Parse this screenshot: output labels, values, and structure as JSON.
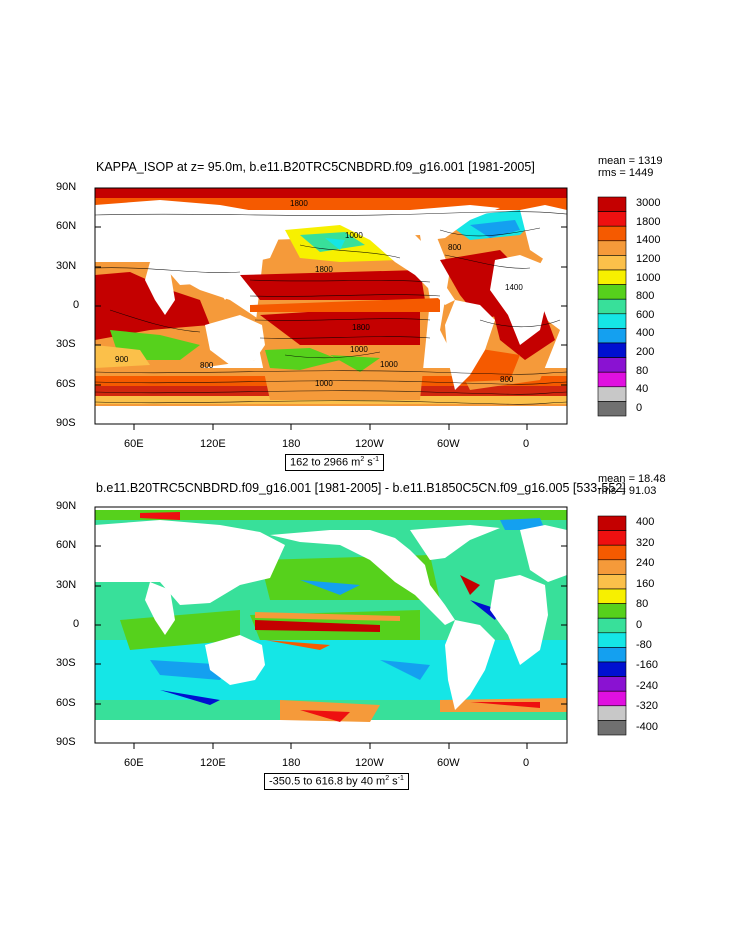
{
  "panels": [
    {
      "title": "KAPPA_ISOP at z=  95.0m, b.e11.B20TRC5CNBDRD.f09_g16.001 [1981-2005]",
      "mean": "mean = 1319",
      "rms": "rms = 1449",
      "range_text": "162 to 2966 m",
      "range_sup1": "2",
      "range_mid": " s",
      "range_sup2": "-1",
      "colorbar_labels": [
        "3000",
        "1800",
        "1400",
        "1200",
        "1000",
        "800",
        "600",
        "400",
        "200",
        "80",
        "40",
        "0"
      ],
      "colorbar_colors": [
        "#c40000",
        "#ee1010",
        "#f55a00",
        "#f59a3a",
        "#fbc04a",
        "#f7f000",
        "#56d11c",
        "#38e09a",
        "#15e6e6",
        "#14a0f0",
        "#0010d0",
        "#8a12d2",
        "#e010e0",
        "#c8c8c8",
        "#707070"
      ],
      "contour_labels": [
        "1800",
        "1000",
        "1800",
        "1800",
        "1000",
        "800",
        "900",
        "1000",
        "800",
        "1000",
        "1400",
        "800"
      ]
    },
    {
      "title": "b.e11.B20TRC5CNBDRD.f09_g16.001 [1981-2005] - b.e11.B1850C5CN.f09_g16.005 [533-552]",
      "mean": "mean = 18.48",
      "rms": "rms = 91.03",
      "range_text": "-350.5 to 616.8 by 40 m",
      "range_sup1": "2",
      "range_mid": " s",
      "range_sup2": "-1",
      "colorbar_labels": [
        "400",
        "320",
        "240",
        "160",
        "80",
        "0",
        "-80",
        "-160",
        "-240",
        "-320",
        "-400"
      ],
      "colorbar_colors": [
        "#c40000",
        "#ee1010",
        "#f55a00",
        "#f59a3a",
        "#fbc04a",
        "#f7f000",
        "#56d11c",
        "#38e09a",
        "#15e6e6",
        "#14a0f0",
        "#0010d0",
        "#8a12d2",
        "#e010e0",
        "#c8c8c8",
        "#707070"
      ]
    }
  ],
  "axes": {
    "lat_labels": [
      "90N",
      "60N",
      "30N",
      "0",
      "30S",
      "60S",
      "90S"
    ],
    "lon_labels": [
      "60E",
      "120E",
      "180",
      "120W",
      "60W",
      "0"
    ]
  }
}
